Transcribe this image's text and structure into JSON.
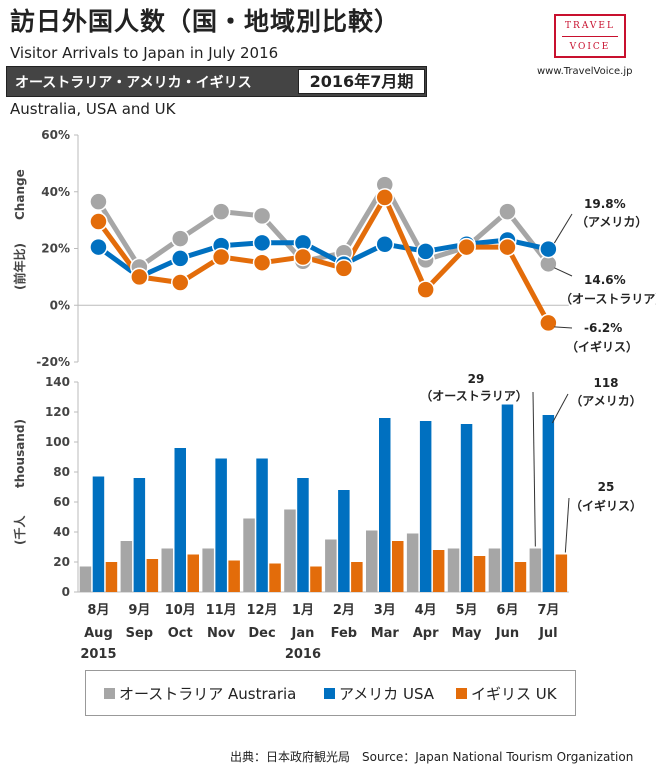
{
  "header": {
    "title": "訪日外国人数（国・地域別比較）",
    "subtitle": "Visitor Arrivals to Japan in July 2016",
    "banner_label": "オーストラリア・アメリカ・イギリス",
    "banner_period": "2016年7月期",
    "region_label": "Australia, USA and UK",
    "logo_top": "TRAVEL",
    "logo_bottom": "VOICE",
    "site_url": "www.TravelVoice.jp"
  },
  "colors": {
    "australia": "#a6a6a6",
    "usa": "#0070c0",
    "uk": "#e36c0a"
  },
  "legend": [
    {
      "key": "australia",
      "label": "オーストラリア Austraria"
    },
    {
      "key": "usa",
      "label": "アメリカ USA"
    },
    {
      "key": "uk",
      "label": "イギリス UK"
    }
  ],
  "source": "出典：日本政府観光局　Source：Japan National Tourism Organization",
  "chart_data": [
    {
      "type": "line",
      "title": "",
      "ylabel_jp": "(前年比)",
      "ylabel_en": "Change",
      "ylim": [
        -20,
        60
      ],
      "yticks": [
        "-20%",
        "0%",
        "20%",
        "40%",
        "60%"
      ],
      "categories": [
        "8月 Aug 2015",
        "9月 Sep",
        "10月 Oct",
        "11月 Nov",
        "12月 Dec",
        "1月 Jan 2016",
        "2月 Feb",
        "3月 Mar",
        "4月 Apr",
        "5月 May",
        "6月 Jun",
        "7月 Jul"
      ],
      "series": [
        {
          "name": "オーストラリア Austraria",
          "key": "australia",
          "values": [
            36.5,
            13.5,
            23.5,
            33,
            31.5,
            15.5,
            18.5,
            42.5,
            16,
            20.5,
            33,
            14.6
          ]
        },
        {
          "name": "アメリカ USA",
          "key": "usa",
          "values": [
            20.5,
            10,
            16.5,
            21,
            22,
            22,
            14.5,
            21.5,
            19,
            21.5,
            23,
            19.8
          ]
        },
        {
          "name": "イギリス UK",
          "key": "uk",
          "values": [
            29.5,
            10,
            8,
            17,
            15,
            17,
            13,
            38,
            5.5,
            20.5,
            20.5,
            -6.2
          ]
        }
      ],
      "annotations": [
        {
          "value": "19.8%",
          "label": "（アメリカ）"
        },
        {
          "value": "14.6%",
          "label": "（オーストラリア）"
        },
        {
          "value": "-6.2%",
          "label": "（イギリス）"
        }
      ]
    },
    {
      "type": "bar",
      "ylabel_jp": "(千人",
      "ylabel_en": "thousand)",
      "ylim": [
        0,
        140
      ],
      "yticks": [
        "0",
        "20",
        "40",
        "60",
        "80",
        "100",
        "120",
        "140"
      ],
      "categories": [
        "8月 Aug 2015",
        "9月 Sep",
        "10月 Oct",
        "11月 Nov",
        "12月 Dec",
        "1月 Jan 2016",
        "2月 Feb",
        "3月 Mar",
        "4月 Apr",
        "5月 May",
        "6月 Jun",
        "7月 Jul"
      ],
      "month_labels": [
        "8月",
        "9月",
        "10月",
        "11月",
        "12月",
        "1月",
        "2月",
        "3月",
        "4月",
        "5月",
        "6月",
        "7月"
      ],
      "month_en": [
        "Aug",
        "Sep",
        "Oct",
        "Nov",
        "Dec",
        "Jan",
        "Feb",
        "Mar",
        "Apr",
        "May",
        "Jun",
        "Jul"
      ],
      "year_labels": [
        "2015",
        "",
        "",
        "",
        "",
        "2016",
        "",
        "",
        "",
        "",
        "",
        ""
      ],
      "series": [
        {
          "name": "オーストラリア Austraria",
          "key": "australia",
          "values": [
            17,
            34,
            29,
            29,
            49,
            55,
            35,
            41,
            39,
            29,
            29,
            29
          ]
        },
        {
          "name": "アメリカ USA",
          "key": "usa",
          "values": [
            77,
            76,
            96,
            89,
            89,
            76,
            68,
            116,
            114,
            112,
            125,
            118
          ]
        },
        {
          "name": "イギリス UK",
          "key": "uk",
          "values": [
            20,
            22,
            25,
            21,
            19,
            17,
            20,
            34,
            28,
            24,
            20,
            25
          ]
        }
      ],
      "annotations": [
        {
          "value": "29",
          "label": "（オーストラリア）"
        },
        {
          "value": "118",
          "label": "（アメリカ）"
        },
        {
          "value": "25",
          "label": "（イギリス）"
        }
      ]
    }
  ]
}
